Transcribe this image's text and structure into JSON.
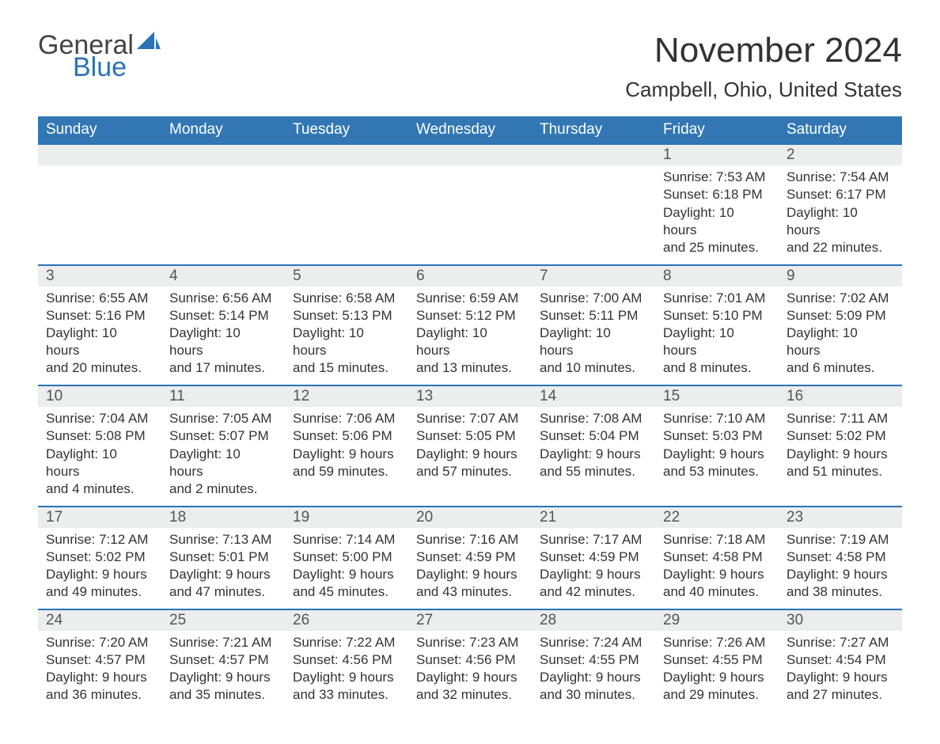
{
  "brand": {
    "part1": "General",
    "part2": "Blue",
    "accent_color": "#2a73b8"
  },
  "title": "November 2024",
  "location": "Campbell, Ohio, United States",
  "weekday_headers": [
    "Sunday",
    "Monday",
    "Tuesday",
    "Wednesday",
    "Thursday",
    "Friday",
    "Saturday"
  ],
  "header_bg": "#3277b3",
  "band_bg": "#eceded",
  "row_border": "#2a73b8",
  "weeks": [
    [
      null,
      null,
      null,
      null,
      null,
      {
        "day": "1",
        "sunrise": "Sunrise: 7:53 AM",
        "sunset": "Sunset: 6:18 PM",
        "daylight1": "Daylight: 10 hours",
        "daylight2": "and 25 minutes."
      },
      {
        "day": "2",
        "sunrise": "Sunrise: 7:54 AM",
        "sunset": "Sunset: 6:17 PM",
        "daylight1": "Daylight: 10 hours",
        "daylight2": "and 22 minutes."
      }
    ],
    [
      {
        "day": "3",
        "sunrise": "Sunrise: 6:55 AM",
        "sunset": "Sunset: 5:16 PM",
        "daylight1": "Daylight: 10 hours",
        "daylight2": "and 20 minutes."
      },
      {
        "day": "4",
        "sunrise": "Sunrise: 6:56 AM",
        "sunset": "Sunset: 5:14 PM",
        "daylight1": "Daylight: 10 hours",
        "daylight2": "and 17 minutes."
      },
      {
        "day": "5",
        "sunrise": "Sunrise: 6:58 AM",
        "sunset": "Sunset: 5:13 PM",
        "daylight1": "Daylight: 10 hours",
        "daylight2": "and 15 minutes."
      },
      {
        "day": "6",
        "sunrise": "Sunrise: 6:59 AM",
        "sunset": "Sunset: 5:12 PM",
        "daylight1": "Daylight: 10 hours",
        "daylight2": "and 13 minutes."
      },
      {
        "day": "7",
        "sunrise": "Sunrise: 7:00 AM",
        "sunset": "Sunset: 5:11 PM",
        "daylight1": "Daylight: 10 hours",
        "daylight2": "and 10 minutes."
      },
      {
        "day": "8",
        "sunrise": "Sunrise: 7:01 AM",
        "sunset": "Sunset: 5:10 PM",
        "daylight1": "Daylight: 10 hours",
        "daylight2": "and 8 minutes."
      },
      {
        "day": "9",
        "sunrise": "Sunrise: 7:02 AM",
        "sunset": "Sunset: 5:09 PM",
        "daylight1": "Daylight: 10 hours",
        "daylight2": "and 6 minutes."
      }
    ],
    [
      {
        "day": "10",
        "sunrise": "Sunrise: 7:04 AM",
        "sunset": "Sunset: 5:08 PM",
        "daylight1": "Daylight: 10 hours",
        "daylight2": "and 4 minutes."
      },
      {
        "day": "11",
        "sunrise": "Sunrise: 7:05 AM",
        "sunset": "Sunset: 5:07 PM",
        "daylight1": "Daylight: 10 hours",
        "daylight2": "and 2 minutes."
      },
      {
        "day": "12",
        "sunrise": "Sunrise: 7:06 AM",
        "sunset": "Sunset: 5:06 PM",
        "daylight1": "Daylight: 9 hours",
        "daylight2": "and 59 minutes."
      },
      {
        "day": "13",
        "sunrise": "Sunrise: 7:07 AM",
        "sunset": "Sunset: 5:05 PM",
        "daylight1": "Daylight: 9 hours",
        "daylight2": "and 57 minutes."
      },
      {
        "day": "14",
        "sunrise": "Sunrise: 7:08 AM",
        "sunset": "Sunset: 5:04 PM",
        "daylight1": "Daylight: 9 hours",
        "daylight2": "and 55 minutes."
      },
      {
        "day": "15",
        "sunrise": "Sunrise: 7:10 AM",
        "sunset": "Sunset: 5:03 PM",
        "daylight1": "Daylight: 9 hours",
        "daylight2": "and 53 minutes."
      },
      {
        "day": "16",
        "sunrise": "Sunrise: 7:11 AM",
        "sunset": "Sunset: 5:02 PM",
        "daylight1": "Daylight: 9 hours",
        "daylight2": "and 51 minutes."
      }
    ],
    [
      {
        "day": "17",
        "sunrise": "Sunrise: 7:12 AM",
        "sunset": "Sunset: 5:02 PM",
        "daylight1": "Daylight: 9 hours",
        "daylight2": "and 49 minutes."
      },
      {
        "day": "18",
        "sunrise": "Sunrise: 7:13 AM",
        "sunset": "Sunset: 5:01 PM",
        "daylight1": "Daylight: 9 hours",
        "daylight2": "and 47 minutes."
      },
      {
        "day": "19",
        "sunrise": "Sunrise: 7:14 AM",
        "sunset": "Sunset: 5:00 PM",
        "daylight1": "Daylight: 9 hours",
        "daylight2": "and 45 minutes."
      },
      {
        "day": "20",
        "sunrise": "Sunrise: 7:16 AM",
        "sunset": "Sunset: 4:59 PM",
        "daylight1": "Daylight: 9 hours",
        "daylight2": "and 43 minutes."
      },
      {
        "day": "21",
        "sunrise": "Sunrise: 7:17 AM",
        "sunset": "Sunset: 4:59 PM",
        "daylight1": "Daylight: 9 hours",
        "daylight2": "and 42 minutes."
      },
      {
        "day": "22",
        "sunrise": "Sunrise: 7:18 AM",
        "sunset": "Sunset: 4:58 PM",
        "daylight1": "Daylight: 9 hours",
        "daylight2": "and 40 minutes."
      },
      {
        "day": "23",
        "sunrise": "Sunrise: 7:19 AM",
        "sunset": "Sunset: 4:58 PM",
        "daylight1": "Daylight: 9 hours",
        "daylight2": "and 38 minutes."
      }
    ],
    [
      {
        "day": "24",
        "sunrise": "Sunrise: 7:20 AM",
        "sunset": "Sunset: 4:57 PM",
        "daylight1": "Daylight: 9 hours",
        "daylight2": "and 36 minutes."
      },
      {
        "day": "25",
        "sunrise": "Sunrise: 7:21 AM",
        "sunset": "Sunset: 4:57 PM",
        "daylight1": "Daylight: 9 hours",
        "daylight2": "and 35 minutes."
      },
      {
        "day": "26",
        "sunrise": "Sunrise: 7:22 AM",
        "sunset": "Sunset: 4:56 PM",
        "daylight1": "Daylight: 9 hours",
        "daylight2": "and 33 minutes."
      },
      {
        "day": "27",
        "sunrise": "Sunrise: 7:23 AM",
        "sunset": "Sunset: 4:56 PM",
        "daylight1": "Daylight: 9 hours",
        "daylight2": "and 32 minutes."
      },
      {
        "day": "28",
        "sunrise": "Sunrise: 7:24 AM",
        "sunset": "Sunset: 4:55 PM",
        "daylight1": "Daylight: 9 hours",
        "daylight2": "and 30 minutes."
      },
      {
        "day": "29",
        "sunrise": "Sunrise: 7:26 AM",
        "sunset": "Sunset: 4:55 PM",
        "daylight1": "Daylight: 9 hours",
        "daylight2": "and 29 minutes."
      },
      {
        "day": "30",
        "sunrise": "Sunrise: 7:27 AM",
        "sunset": "Sunset: 4:54 PM",
        "daylight1": "Daylight: 9 hours",
        "daylight2": "and 27 minutes."
      }
    ]
  ]
}
